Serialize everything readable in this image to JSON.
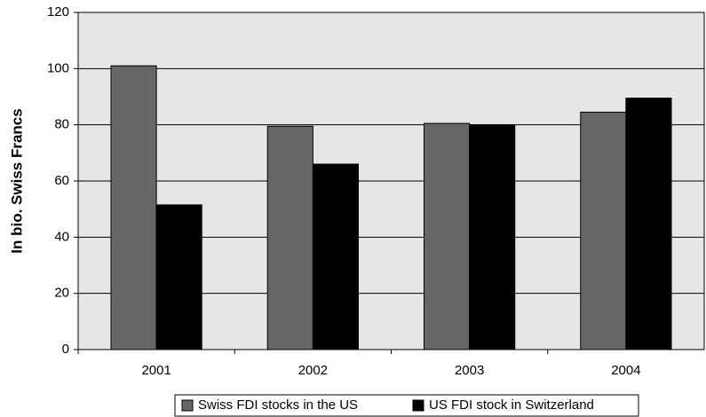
{
  "chart_data": {
    "type": "bar",
    "y_label": "In bio. Swiss Francs",
    "categories": [
      "2001",
      "2002",
      "2003",
      "2004"
    ],
    "series": [
      {
        "name": "Swiss FDI stocks in the US",
        "color": "#666666",
        "values": [
          101,
          79.5,
          80.5,
          84.5
        ]
      },
      {
        "name": "US FDI stock in Switzerland",
        "color": "#000000",
        "values": [
          51.5,
          66,
          80,
          89.5
        ]
      }
    ],
    "ylim": [
      0,
      120
    ],
    "yticks": [
      0,
      20,
      40,
      60,
      80,
      100,
      120
    ],
    "grid": true,
    "legend": "bottom"
  }
}
